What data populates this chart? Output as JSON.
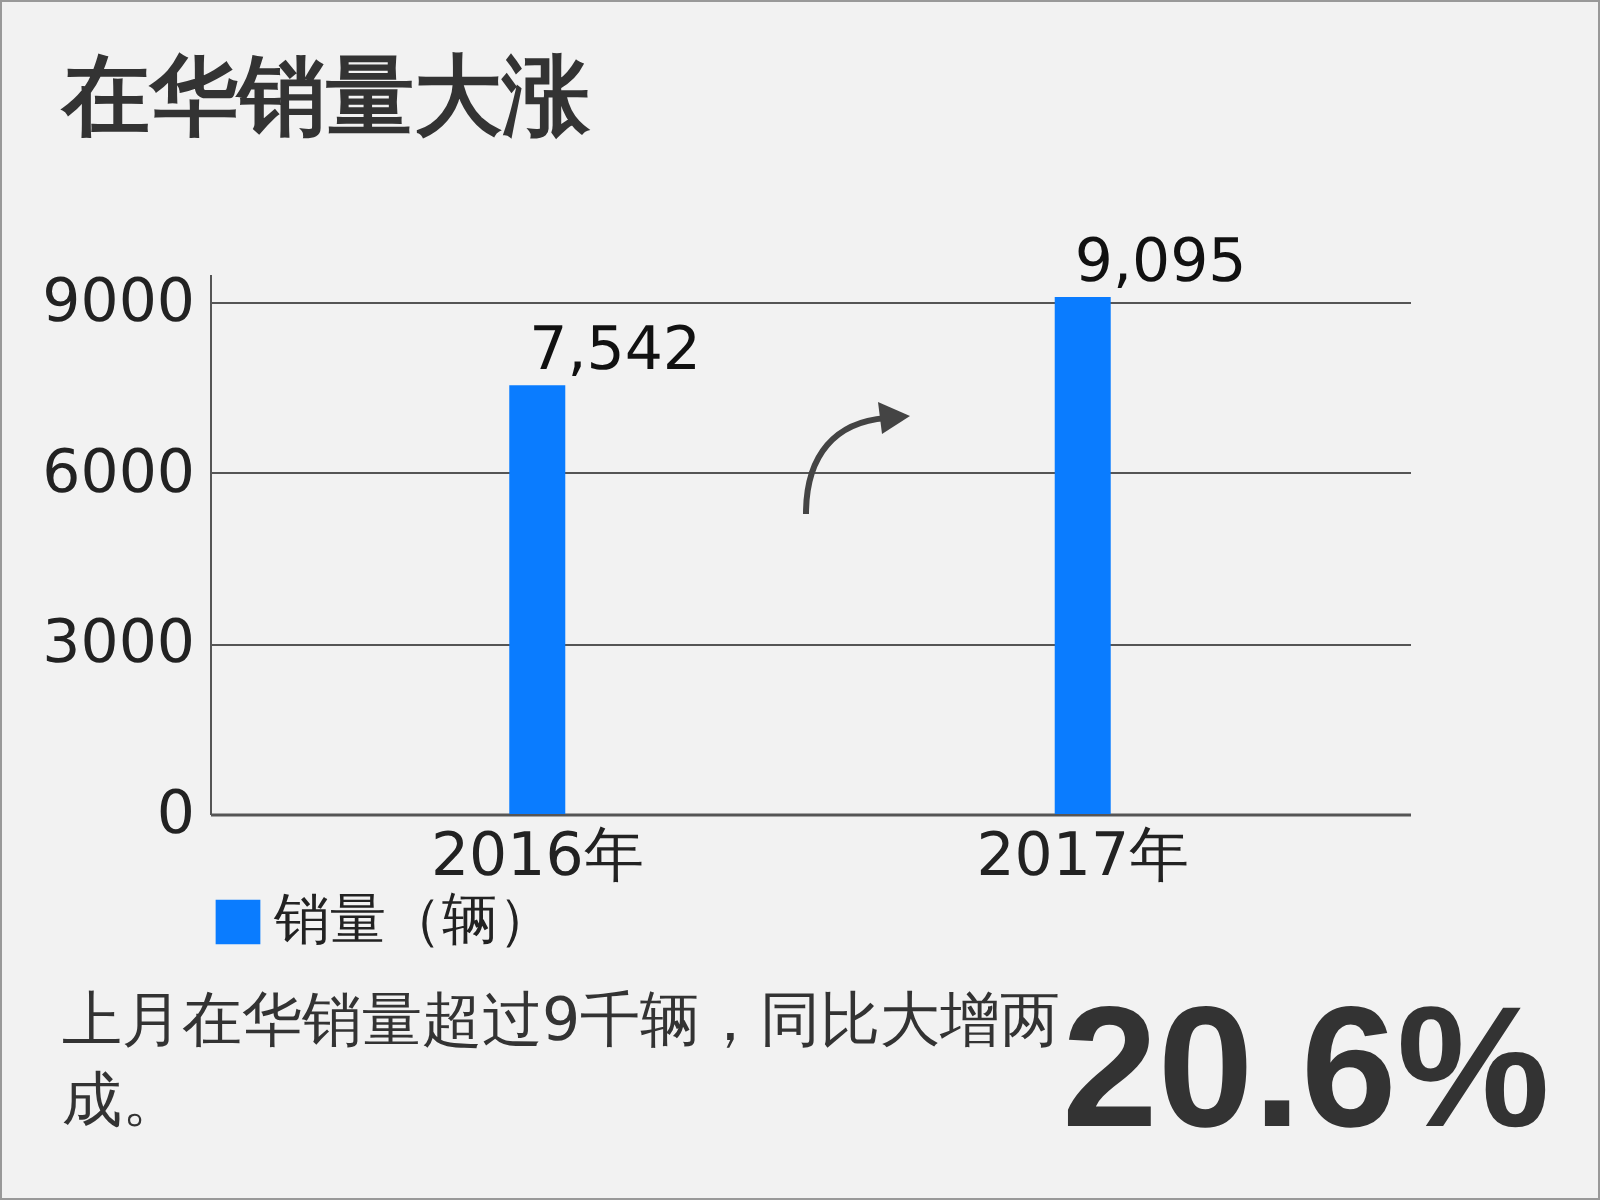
{
  "chart_data": {
    "type": "bar",
    "title": "在华销量大涨",
    "categories": [
      "2016年",
      "2017年"
    ],
    "series": [
      {
        "name": "销量（辆）",
        "color": "#0a7cff",
        "values": [
          7542,
          9095
        ],
        "value_labels": [
          "7,542",
          "9,095"
        ]
      }
    ],
    "ylim": [
      0,
      9500
    ],
    "yticks": [
      0,
      3000,
      6000,
      9000
    ],
    "grid": "y",
    "legend": "bottom",
    "annotations": [
      "上月在华销量超过9千辆，同比大增两成。",
      "20.6%"
    ]
  }
}
